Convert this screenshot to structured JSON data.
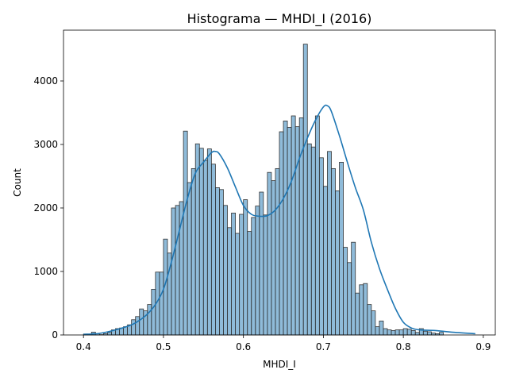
{
  "chart_data": {
    "type": "bar",
    "title": "Histograma — MHDI_I (2016)",
    "xlabel": "MHDI_I",
    "ylabel": "Count",
    "xlim": [
      0.375,
      0.915
    ],
    "ylim": [
      0,
      4800
    ],
    "xticks": [
      0.4,
      0.5,
      0.6,
      0.7,
      0.8,
      0.9
    ],
    "xtick_labels": [
      "0.4",
      "0.5",
      "0.6",
      "0.7",
      "0.8",
      "0.9"
    ],
    "yticks": [
      0,
      1000,
      2000,
      3000,
      4000
    ],
    "ytick_labels": [
      "0",
      "1000",
      "2000",
      "3000",
      "4000"
    ],
    "bin_start": 0.4,
    "bin_width": 0.005,
    "grid": false,
    "legend": false,
    "bar_color": "#1f77b4",
    "line_color": "#1f77b4",
    "values": [
      15,
      10,
      45,
      20,
      5,
      20,
      40,
      80,
      100,
      110,
      130,
      160,
      240,
      290,
      410,
      380,
      480,
      720,
      990,
      990,
      1510,
      1290,
      2000,
      2040,
      2100,
      3210,
      2400,
      2620,
      3010,
      2940,
      2750,
      2930,
      2690,
      2320,
      2290,
      2040,
      1690,
      1920,
      1600,
      1900,
      2130,
      1630,
      1850,
      2030,
      2250,
      1890,
      2560,
      2430,
      2620,
      3200,
      3370,
      3270,
      3450,
      3280,
      3420,
      4580,
      3010,
      2960,
      3450,
      2790,
      2340,
      2890,
      2620,
      2270,
      2720,
      1380,
      1140,
      1460,
      660,
      790,
      810,
      480,
      380,
      130,
      220,
      100,
      80,
      70,
      80,
      80,
      100,
      90,
      70,
      40,
      100,
      60,
      50,
      30,
      20,
      40
    ],
    "kde": {
      "x": [
        0.4,
        0.42,
        0.44,
        0.46,
        0.47,
        0.48,
        0.49,
        0.5,
        0.51,
        0.52,
        0.53,
        0.54,
        0.55,
        0.56,
        0.565,
        0.57,
        0.58,
        0.59,
        0.6,
        0.61,
        0.62,
        0.63,
        0.64,
        0.65,
        0.66,
        0.67,
        0.68,
        0.69,
        0.7,
        0.705,
        0.71,
        0.72,
        0.73,
        0.74,
        0.75,
        0.76,
        0.77,
        0.78,
        0.79,
        0.8,
        0.81,
        0.82,
        0.84,
        0.86,
        0.89
      ],
      "y": [
        10,
        25,
        80,
        160,
        230,
        330,
        480,
        720,
        1150,
        1650,
        2150,
        2550,
        2720,
        2870,
        2890,
        2850,
        2630,
        2330,
        2040,
        1900,
        1870,
        1880,
        1970,
        2150,
        2420,
        2780,
        3100,
        3380,
        3590,
        3610,
        3520,
        3140,
        2720,
        2320,
        1970,
        1460,
        1050,
        720,
        420,
        200,
        110,
        80,
        70,
        45,
        20
      ]
    }
  }
}
